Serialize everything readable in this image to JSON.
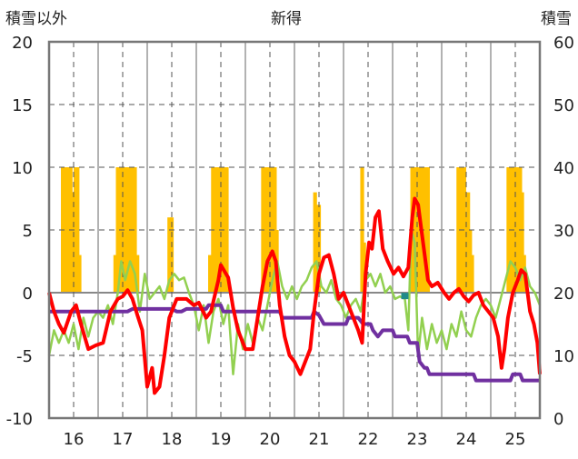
{
  "chart_data": {
    "type": "line",
    "title": "新得",
    "left_axis_label": "積雪以外",
    "right_axis_label": "積雪",
    "x_range": [
      15.5,
      25.5
    ],
    "left_ylim": [
      -10,
      20
    ],
    "right_ylim": [
      0,
      60
    ],
    "left_ticks": [
      "20",
      "15",
      "10",
      "5",
      "0",
      "-5",
      "-10"
    ],
    "right_ticks": [
      "60",
      "50",
      "40",
      "30",
      "20",
      "10",
      "0"
    ],
    "x_ticks": [
      "16",
      "17",
      "18",
      "19",
      "20",
      "21",
      "22",
      "23",
      "24",
      "25"
    ],
    "grid": true,
    "colors": {
      "red_series": "#ff0000",
      "green_series": "#92d050",
      "purple_series": "#7030a0",
      "bar_series": "#ffc000",
      "marker": "#1f8a8a",
      "plot_border": "#777777",
      "grid": "#555555"
    },
    "bars": [
      {
        "x": 15.78,
        "v": 10
      },
      {
        "x": 15.82,
        "v": 10
      },
      {
        "x": 15.86,
        "v": 10
      },
      {
        "x": 15.9,
        "v": 10
      },
      {
        "x": 15.94,
        "v": 10
      },
      {
        "x": 15.98,
        "v": 8
      },
      {
        "x": 16.04,
        "v": 10
      },
      {
        "x": 16.08,
        "v": 10
      },
      {
        "x": 16.12,
        "v": 3
      },
      {
        "x": 16.85,
        "v": 3
      },
      {
        "x": 16.9,
        "v": 10
      },
      {
        "x": 16.95,
        "v": 10
      },
      {
        "x": 17.0,
        "v": 10
      },
      {
        "x": 17.05,
        "v": 10
      },
      {
        "x": 17.1,
        "v": 10
      },
      {
        "x": 17.15,
        "v": 10
      },
      {
        "x": 17.2,
        "v": 10
      },
      {
        "x": 17.25,
        "v": 10
      },
      {
        "x": 17.3,
        "v": 3
      },
      {
        "x": 17.95,
        "v": 6
      },
      {
        "x": 18.0,
        "v": 6
      },
      {
        "x": 18.78,
        "v": 3
      },
      {
        "x": 18.84,
        "v": 10
      },
      {
        "x": 18.88,
        "v": 10
      },
      {
        "x": 18.92,
        "v": 10
      },
      {
        "x": 18.96,
        "v": 10
      },
      {
        "x": 19.0,
        "v": 10
      },
      {
        "x": 19.04,
        "v": 10
      },
      {
        "x": 19.08,
        "v": 10
      },
      {
        "x": 19.12,
        "v": 10
      },
      {
        "x": 19.86,
        "v": 10
      },
      {
        "x": 19.9,
        "v": 10
      },
      {
        "x": 19.94,
        "v": 10
      },
      {
        "x": 19.98,
        "v": 10
      },
      {
        "x": 20.02,
        "v": 10
      },
      {
        "x": 20.06,
        "v": 10
      },
      {
        "x": 20.1,
        "v": 10
      },
      {
        "x": 20.14,
        "v": 5
      },
      {
        "x": 20.92,
        "v": 8
      },
      {
        "x": 20.96,
        "v": 7
      },
      {
        "x": 21.0,
        "v": 7
      },
      {
        "x": 21.88,
        "v": 10
      },
      {
        "x": 21.92,
        "v": 4
      },
      {
        "x": 22.9,
        "v": 10
      },
      {
        "x": 22.94,
        "v": 10
      },
      {
        "x": 22.98,
        "v": 10
      },
      {
        "x": 23.02,
        "v": 10
      },
      {
        "x": 23.06,
        "v": 10
      },
      {
        "x": 23.1,
        "v": 10
      },
      {
        "x": 23.14,
        "v": 10
      },
      {
        "x": 23.18,
        "v": 10
      },
      {
        "x": 23.22,
        "v": 10
      },
      {
        "x": 23.84,
        "v": 10
      },
      {
        "x": 23.88,
        "v": 10
      },
      {
        "x": 23.92,
        "v": 10
      },
      {
        "x": 23.96,
        "v": 10
      },
      {
        "x": 24.0,
        "v": 6
      },
      {
        "x": 24.04,
        "v": 8
      },
      {
        "x": 24.08,
        "v": 5
      },
      {
        "x": 24.12,
        "v": 3
      },
      {
        "x": 24.86,
        "v": 10
      },
      {
        "x": 24.9,
        "v": 10
      },
      {
        "x": 24.94,
        "v": 10
      },
      {
        "x": 24.98,
        "v": 10
      },
      {
        "x": 25.02,
        "v": 10
      },
      {
        "x": 25.06,
        "v": 10
      },
      {
        "x": 25.1,
        "v": 10
      },
      {
        "x": 25.14,
        "v": 8
      },
      {
        "x": 25.18,
        "v": 3
      }
    ],
    "red_series": [
      [
        15.5,
        0
      ],
      [
        15.6,
        -1.5
      ],
      [
        15.7,
        -2.5
      ],
      [
        15.8,
        -3.2
      ],
      [
        15.95,
        -1.5
      ],
      [
        16.05,
        -1.0
      ],
      [
        16.15,
        -2.5
      ],
      [
        16.3,
        -4.5
      ],
      [
        16.45,
        -4.2
      ],
      [
        16.6,
        -4.0
      ],
      [
        16.75,
        -1.5
      ],
      [
        16.9,
        -0.5
      ],
      [
        17.0,
        -0.3
      ],
      [
        17.1,
        0.2
      ],
      [
        17.2,
        -0.5
      ],
      [
        17.3,
        -1.8
      ],
      [
        17.4,
        -3.0
      ],
      [
        17.5,
        -7.5
      ],
      [
        17.6,
        -6.0
      ],
      [
        17.65,
        -8.0
      ],
      [
        17.75,
        -7.5
      ],
      [
        17.85,
        -5.0
      ],
      [
        17.95,
        -2.0
      ],
      [
        18.1,
        -0.5
      ],
      [
        18.3,
        -0.5
      ],
      [
        18.45,
        -1.0
      ],
      [
        18.55,
        -0.8
      ],
      [
        18.7,
        -2.0
      ],
      [
        18.8,
        -1.5
      ],
      [
        18.95,
        1.0
      ],
      [
        19.0,
        2.2
      ],
      [
        19.15,
        1.2
      ],
      [
        19.25,
        -1.2
      ],
      [
        19.35,
        -3.0
      ],
      [
        19.5,
        -4.5
      ],
      [
        19.65,
        -4.5
      ],
      [
        19.75,
        -2.0
      ],
      [
        19.85,
        0.5
      ],
      [
        19.95,
        2.5
      ],
      [
        20.05,
        3.3
      ],
      [
        20.12,
        2.5
      ],
      [
        20.2,
        -1.0
      ],
      [
        20.3,
        -3.5
      ],
      [
        20.4,
        -5.0
      ],
      [
        20.5,
        -5.5
      ],
      [
        20.62,
        -6.5
      ],
      [
        20.72,
        -5.5
      ],
      [
        20.82,
        -4.5
      ],
      [
        20.9,
        -1.5
      ],
      [
        21.0,
        1.5
      ],
      [
        21.1,
        2.8
      ],
      [
        21.2,
        3.0
      ],
      [
        21.3,
        1.5
      ],
      [
        21.4,
        -0.5
      ],
      [
        21.5,
        0.0
      ],
      [
        21.6,
        -1.0
      ],
      [
        21.7,
        -2.0
      ],
      [
        21.8,
        -3.0
      ],
      [
        21.88,
        -4.0
      ],
      [
        21.95,
        1.5
      ],
      [
        22.02,
        4.0
      ],
      [
        22.08,
        3.5
      ],
      [
        22.15,
        6.0
      ],
      [
        22.22,
        6.5
      ],
      [
        22.3,
        3.5
      ],
      [
        22.4,
        2.5
      ],
      [
        22.52,
        1.5
      ],
      [
        22.62,
        2.0
      ],
      [
        22.72,
        1.3
      ],
      [
        22.82,
        2.0
      ],
      [
        22.9,
        6.0
      ],
      [
        22.95,
        7.5
      ],
      [
        23.02,
        7.0
      ],
      [
        23.12,
        4.0
      ],
      [
        23.22,
        1.0
      ],
      [
        23.3,
        0.5
      ],
      [
        23.42,
        0.8
      ],
      [
        23.55,
        0.0
      ],
      [
        23.65,
        -0.5
      ],
      [
        23.75,
        0.0
      ],
      [
        23.85,
        0.3
      ],
      [
        23.95,
        -0.3
      ],
      [
        24.05,
        -0.7
      ],
      [
        24.15,
        -0.2
      ],
      [
        24.25,
        0.0
      ],
      [
        24.35,
        -1.0
      ],
      [
        24.45,
        -1.5
      ],
      [
        24.55,
        -2.0
      ],
      [
        24.65,
        -3.5
      ],
      [
        24.72,
        -6.0
      ],
      [
        24.78,
        -4.5
      ],
      [
        24.85,
        -2.0
      ],
      [
        24.95,
        0.0
      ],
      [
        25.05,
        1.0
      ],
      [
        25.12,
        1.8
      ],
      [
        25.2,
        1.5
      ],
      [
        25.3,
        -1.5
      ],
      [
        25.38,
        -2.5
      ],
      [
        25.45,
        -4.0
      ],
      [
        25.5,
        -6.5
      ]
    ],
    "green_series": [
      [
        15.5,
        -5.0
      ],
      [
        15.6,
        -3.0
      ],
      [
        15.7,
        -4.0
      ],
      [
        15.8,
        -3.0
      ],
      [
        15.9,
        -4.0
      ],
      [
        16.0,
        -2.5
      ],
      [
        16.1,
        -4.5
      ],
      [
        16.2,
        -2.0
      ],
      [
        16.3,
        -3.5
      ],
      [
        16.4,
        -2.0
      ],
      [
        16.5,
        -1.5
      ],
      [
        16.6,
        -2.0
      ],
      [
        16.7,
        -1.0
      ],
      [
        16.8,
        -2.5
      ],
      [
        16.9,
        0.0
      ],
      [
        16.97,
        2.5
      ],
      [
        17.05,
        1.0
      ],
      [
        17.15,
        2.5
      ],
      [
        17.25,
        1.5
      ],
      [
        17.35,
        -1.5
      ],
      [
        17.45,
        1.5
      ],
      [
        17.55,
        -0.5
      ],
      [
        17.65,
        0.0
      ],
      [
        17.75,
        0.5
      ],
      [
        17.85,
        -0.5
      ],
      [
        17.95,
        1.0
      ],
      [
        18.05,
        1.5
      ],
      [
        18.15,
        1.0
      ],
      [
        18.25,
        1.2
      ],
      [
        18.35,
        0.0
      ],
      [
        18.45,
        -1.0
      ],
      [
        18.55,
        -3.0
      ],
      [
        18.65,
        -1.0
      ],
      [
        18.75,
        -4.0
      ],
      [
        18.85,
        -1.5
      ],
      [
        18.95,
        -0.5
      ],
      [
        19.05,
        -2.5
      ],
      [
        19.15,
        -1.0
      ],
      [
        19.25,
        -6.5
      ],
      [
        19.35,
        -2.5
      ],
      [
        19.45,
        -4.5
      ],
      [
        19.55,
        -2.5
      ],
      [
        19.65,
        -4.0
      ],
      [
        19.75,
        -2.0
      ],
      [
        19.85,
        -3.0
      ],
      [
        19.95,
        -1.0
      ],
      [
        20.05,
        1.0
      ],
      [
        20.15,
        2.5
      ],
      [
        20.25,
        0.5
      ],
      [
        20.35,
        -0.5
      ],
      [
        20.45,
        0.5
      ],
      [
        20.55,
        -0.5
      ],
      [
        20.65,
        0.5
      ],
      [
        20.75,
        1.0
      ],
      [
        20.85,
        2.0
      ],
      [
        20.95,
        2.5
      ],
      [
        21.05,
        0.5
      ],
      [
        21.15,
        0.0
      ],
      [
        21.25,
        1.0
      ],
      [
        21.35,
        -0.5
      ],
      [
        21.45,
        -1.0
      ],
      [
        21.55,
        -2.0
      ],
      [
        21.65,
        -1.0
      ],
      [
        21.75,
        -0.5
      ],
      [
        21.85,
        -1.5
      ],
      [
        21.95,
        1.0
      ],
      [
        22.05,
        1.5
      ],
      [
        22.15,
        0.5
      ],
      [
        22.25,
        1.5
      ],
      [
        22.35,
        0.0
      ],
      [
        22.45,
        0.5
      ],
      [
        22.55,
        -0.5
      ],
      [
        22.65,
        -0.3
      ],
      [
        22.75,
        -0.5
      ],
      [
        22.82,
        -3.0
      ],
      [
        22.88,
        5.0
      ],
      [
        22.95,
        4.0
      ],
      [
        23.02,
        -5.0
      ],
      [
        23.1,
        -2.0
      ],
      [
        23.2,
        -4.5
      ],
      [
        23.3,
        -2.5
      ],
      [
        23.4,
        -4.0
      ],
      [
        23.5,
        -3.0
      ],
      [
        23.6,
        -4.5
      ],
      [
        23.7,
        -2.5
      ],
      [
        23.8,
        -3.5
      ],
      [
        23.9,
        -1.5
      ],
      [
        24.0,
        -3.0
      ],
      [
        24.1,
        -3.5
      ],
      [
        24.2,
        -2.0
      ],
      [
        24.3,
        -1.0
      ],
      [
        24.4,
        -0.5
      ],
      [
        24.5,
        -1.0
      ],
      [
        24.6,
        -2.0
      ],
      [
        24.7,
        -0.5
      ],
      [
        24.8,
        1.0
      ],
      [
        24.9,
        2.5
      ],
      [
        25.0,
        2.0
      ],
      [
        25.1,
        1.0
      ],
      [
        25.2,
        2.0
      ],
      [
        25.3,
        0.5
      ],
      [
        25.4,
        0.0
      ],
      [
        25.5,
        -1.0
      ]
    ],
    "purple_series": [
      [
        15.5,
        -1.5
      ],
      [
        17.1,
        -1.5
      ],
      [
        17.2,
        -1.3
      ],
      [
        18.0,
        -1.3
      ],
      [
        18.1,
        -1.5
      ],
      [
        18.2,
        -1.5
      ],
      [
        18.3,
        -1.3
      ],
      [
        18.7,
        -1.3
      ],
      [
        18.75,
        -1.0
      ],
      [
        19.0,
        -1.0
      ],
      [
        19.05,
        -1.5
      ],
      [
        20.2,
        -1.5
      ],
      [
        20.25,
        -2.0
      ],
      [
        20.85,
        -2.0
      ],
      [
        20.9,
        -1.5
      ],
      [
        21.0,
        -1.8
      ],
      [
        21.1,
        -2.5
      ],
      [
        21.55,
        -2.5
      ],
      [
        21.6,
        -2.0
      ],
      [
        21.8,
        -2.0
      ],
      [
        21.9,
        -2.5
      ],
      [
        22.05,
        -2.5
      ],
      [
        22.1,
        -3.0
      ],
      [
        22.2,
        -3.5
      ],
      [
        22.3,
        -3.0
      ],
      [
        22.5,
        -3.0
      ],
      [
        22.55,
        -3.5
      ],
      [
        22.8,
        -3.5
      ],
      [
        22.85,
        -4.0
      ],
      [
        23.0,
        -4.0
      ],
      [
        23.05,
        -5.5
      ],
      [
        23.15,
        -6.0
      ],
      [
        23.2,
        -6.0
      ],
      [
        23.25,
        -6.5
      ],
      [
        24.15,
        -6.5
      ],
      [
        24.2,
        -7.0
      ],
      [
        24.9,
        -7.0
      ],
      [
        24.95,
        -6.5
      ],
      [
        25.1,
        -6.5
      ],
      [
        25.15,
        -7.0
      ],
      [
        25.5,
        -7.0
      ]
    ],
    "marker": {
      "x": 22.75,
      "y": -0.3
    }
  }
}
